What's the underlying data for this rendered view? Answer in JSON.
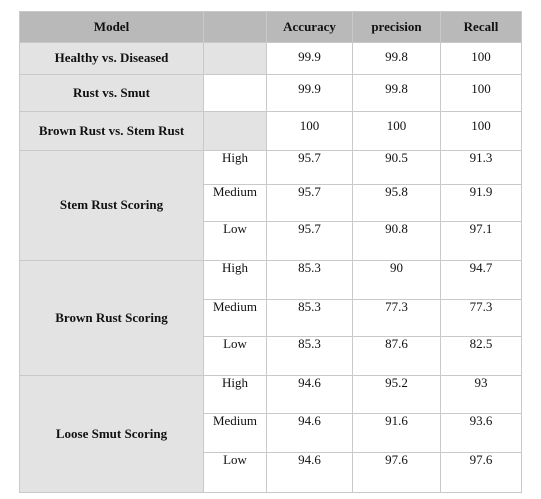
{
  "headers": [
    "Model",
    "",
    "Accuracy",
    "precision",
    "Recall"
  ],
  "simple_rows": [
    {
      "model": "Healthy vs. Diseased",
      "accuracy": "99.9",
      "precision": "99.8",
      "recall": "100"
    },
    {
      "model": "Rust vs. Smut",
      "accuracy": "99.9",
      "precision": "99.8",
      "recall": "100"
    },
    {
      "model": "Brown Rust vs. Stem Rust",
      "accuracy": "100",
      "precision": "100",
      "recall": "100"
    }
  ],
  "groups": [
    {
      "model": "Stem Rust Scoring",
      "rows": [
        {
          "level": "High",
          "accuracy": "95.7",
          "precision": "90.5",
          "recall": "91.3"
        },
        {
          "level": "Medium",
          "accuracy": "95.7",
          "precision": "95.8",
          "recall": "91.9"
        },
        {
          "level": "Low",
          "accuracy": "95.7",
          "precision": "90.8",
          "recall": "97.1"
        }
      ]
    },
    {
      "model": "Brown Rust Scoring",
      "rows": [
        {
          "level": "High",
          "accuracy": "85.3",
          "precision": "90",
          "recall": "94.7"
        },
        {
          "level": "Medium",
          "accuracy": "85.3",
          "precision": "77.3",
          "recall": "77.3"
        },
        {
          "level": "Low",
          "accuracy": "85.3",
          "precision": "87.6",
          "recall": "82.5"
        }
      ]
    },
    {
      "model": "Loose Smut Scoring",
      "rows": [
        {
          "level": "High",
          "accuracy": "94.6",
          "precision": "95.2",
          "recall": "93"
        },
        {
          "level": "Medium",
          "accuracy": "94.6",
          "precision": "91.6",
          "recall": "93.6"
        },
        {
          "level": "Low",
          "accuracy": "94.6",
          "precision": "97.6",
          "recall": "97.6"
        }
      ]
    }
  ]
}
